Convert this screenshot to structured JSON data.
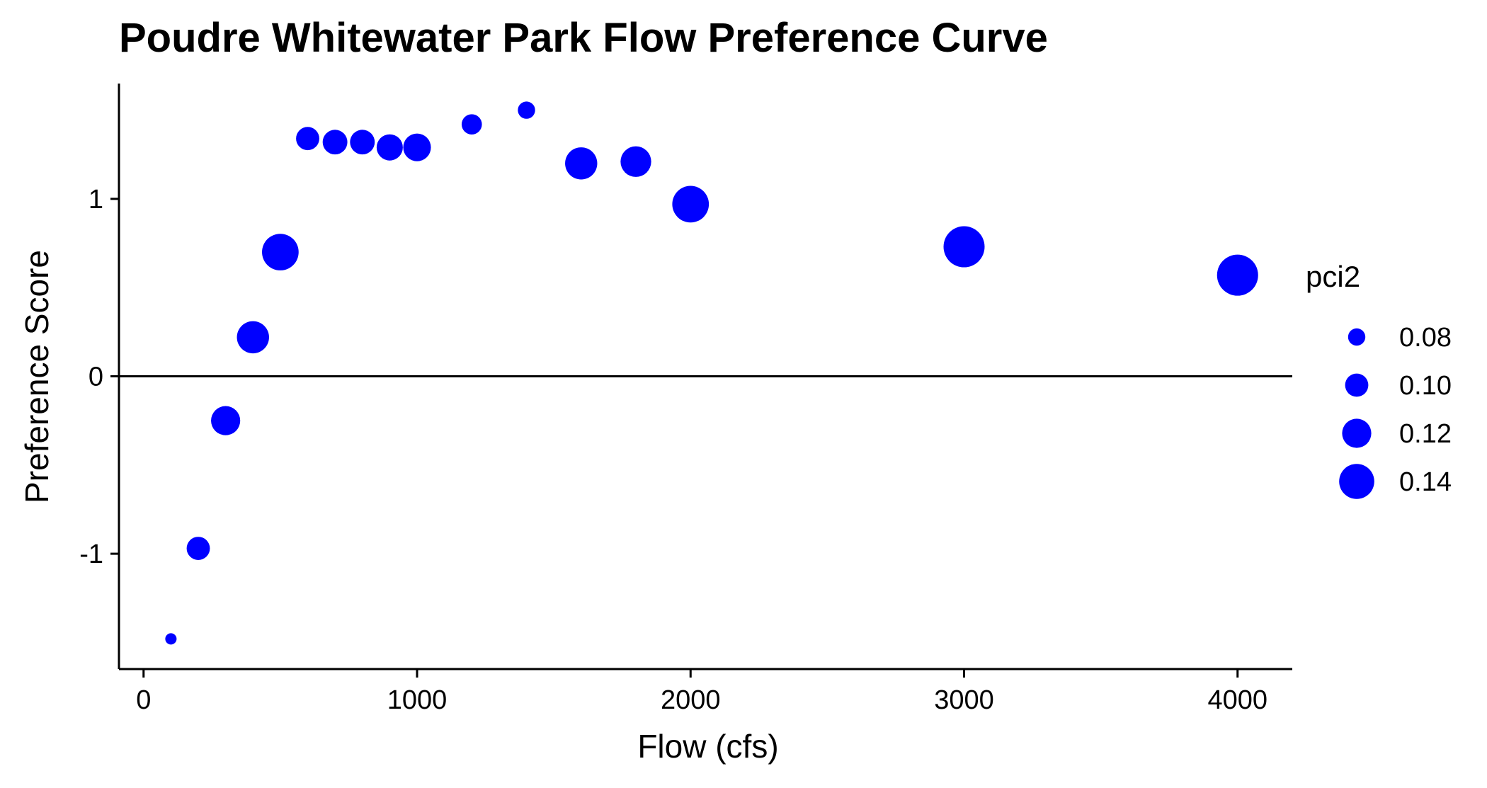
{
  "chart_data": {
    "type": "scatter",
    "title": "Poudre Whitewater Park Flow Preference Curve",
    "xlabel": "Flow (cfs)",
    "ylabel": "Preference Score",
    "xlim": [
      -90,
      4200
    ],
    "ylim": [
      -1.65,
      1.65
    ],
    "xticks": [
      0,
      1000,
      2000,
      3000,
      4000
    ],
    "xtick_labels": [
      "0",
      "1000",
      "2000",
      "3000",
      "4000"
    ],
    "yticks": [
      -1,
      0,
      1
    ],
    "ytick_labels": [
      "-1",
      "0",
      "1"
    ],
    "reference_line_y": 0,
    "grid": false,
    "point_color": "#0000ff",
    "size_variable": "pci2",
    "series": [
      {
        "points": [
          {
            "x": 100,
            "y": -1.48,
            "pci2": 0.06
          },
          {
            "x": 200,
            "y": -0.97,
            "pci2": 0.1
          },
          {
            "x": 300,
            "y": -0.25,
            "pci2": 0.12
          },
          {
            "x": 400,
            "y": 0.22,
            "pci2": 0.13
          },
          {
            "x": 500,
            "y": 0.7,
            "pci2": 0.145
          },
          {
            "x": 600,
            "y": 1.34,
            "pci2": 0.1
          },
          {
            "x": 700,
            "y": 1.32,
            "pci2": 0.105
          },
          {
            "x": 800,
            "y": 1.32,
            "pci2": 0.105
          },
          {
            "x": 900,
            "y": 1.29,
            "pci2": 0.11
          },
          {
            "x": 1000,
            "y": 1.29,
            "pci2": 0.115
          },
          {
            "x": 1200,
            "y": 1.42,
            "pci2": 0.09
          },
          {
            "x": 1400,
            "y": 1.5,
            "pci2": 0.08
          },
          {
            "x": 1600,
            "y": 1.2,
            "pci2": 0.13
          },
          {
            "x": 1800,
            "y": 1.21,
            "pci2": 0.125
          },
          {
            "x": 2000,
            "y": 0.97,
            "pci2": 0.145
          },
          {
            "x": 3000,
            "y": 0.73,
            "pci2": 0.16
          },
          {
            "x": 4000,
            "y": 0.57,
            "pci2": 0.16
          }
        ]
      }
    ],
    "legend": {
      "title": "pci2",
      "position": "right",
      "entries": [
        {
          "label": "0.08",
          "value": 0.08
        },
        {
          "label": "0.10",
          "value": 0.1
        },
        {
          "label": "0.12",
          "value": 0.12
        },
        {
          "label": "0.14",
          "value": 0.14
        }
      ]
    }
  }
}
